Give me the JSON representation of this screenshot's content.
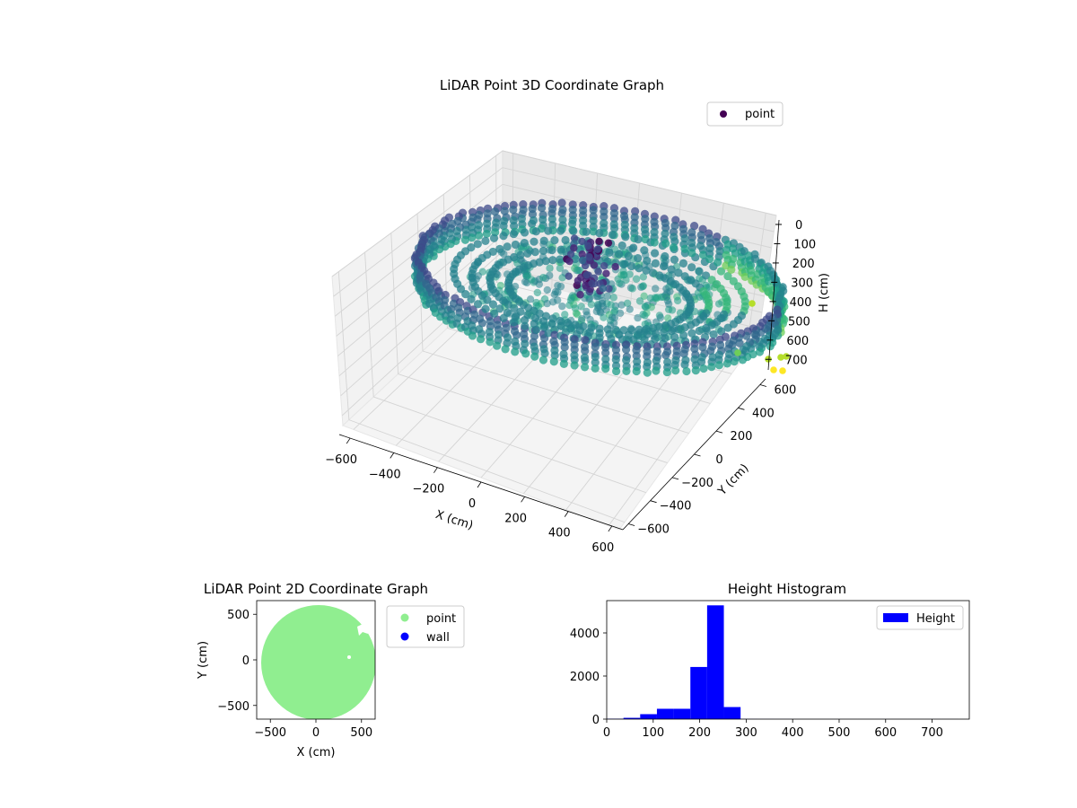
{
  "chart_data": [
    {
      "type": "scatter3d",
      "title": "LiDAR Point 3D Coordinate Graph",
      "xlabel": "X (cm)",
      "ylabel": "Y (cm)",
      "zlabel": "H (cm)",
      "xlim": [
        -650,
        650
      ],
      "ylim": [
        -650,
        650
      ],
      "zlim": [
        0,
        750
      ],
      "z_inverted": true,
      "xticks": [
        "−600",
        "−400",
        "−200",
        "0",
        "200",
        "400",
        "600"
      ],
      "yticks": [
        "−600",
        "−400",
        "−200",
        "0",
        "200",
        "400",
        "600"
      ],
      "zticks": [
        "0",
        "100",
        "200",
        "300",
        "400",
        "500",
        "600",
        "700"
      ],
      "legend": {
        "position": "top-right",
        "entries": [
          {
            "label": "point",
            "color": "#440154"
          }
        ]
      },
      "colormap": "viridis",
      "color_by": "height",
      "grid": true,
      "structure": {
        "wall_ring_radius": 600,
        "wall_height_range": [
          180,
          260
        ],
        "floor_height_range": [
          200,
          260
        ],
        "center_cluster": {
          "x": 0,
          "y": 0,
          "h_range": [
            100,
            300
          ]
        }
      }
    },
    {
      "type": "scatter",
      "title": "LiDAR Point 2D Coordinate Graph",
      "xlabel": "X (cm)",
      "ylabel": "Y (cm)",
      "xlim": [
        -650,
        650
      ],
      "ylim": [
        -650,
        650
      ],
      "xticks": [
        -500,
        0,
        500
      ],
      "yticks": [
        -500,
        0,
        500
      ],
      "legend": {
        "position": "outside-right",
        "entries": [
          {
            "label": "point",
            "color": "#90ee90"
          },
          {
            "label": "wall",
            "color": "#0000ff"
          }
        ]
      },
      "structure": {
        "disk_center": [
          0,
          0
        ],
        "disk_radius": 620
      }
    },
    {
      "type": "bar",
      "title": "Height Histogram",
      "xlim": [
        0,
        780
      ],
      "ylim": [
        0,
        5500
      ],
      "xticks": [
        0,
        100,
        200,
        300,
        400,
        500,
        600,
        700
      ],
      "yticks": [
        0,
        2000,
        4000
      ],
      "bin_edges": [
        0,
        36,
        72,
        108,
        144,
        180,
        216,
        252,
        288,
        324,
        360,
        396,
        432,
        468,
        504,
        540,
        576,
        612,
        648,
        684,
        720,
        756
      ],
      "values": [
        20,
        60,
        230,
        480,
        480,
        2420,
        5280,
        560,
        8,
        5,
        4,
        3,
        3,
        3,
        2,
        2,
        2,
        2,
        2,
        2,
        2
      ],
      "legend": {
        "position": "top-right",
        "entries": [
          {
            "label": "Height",
            "color": "#0000ff"
          }
        ]
      },
      "bar_color": "#0000ff"
    }
  ]
}
